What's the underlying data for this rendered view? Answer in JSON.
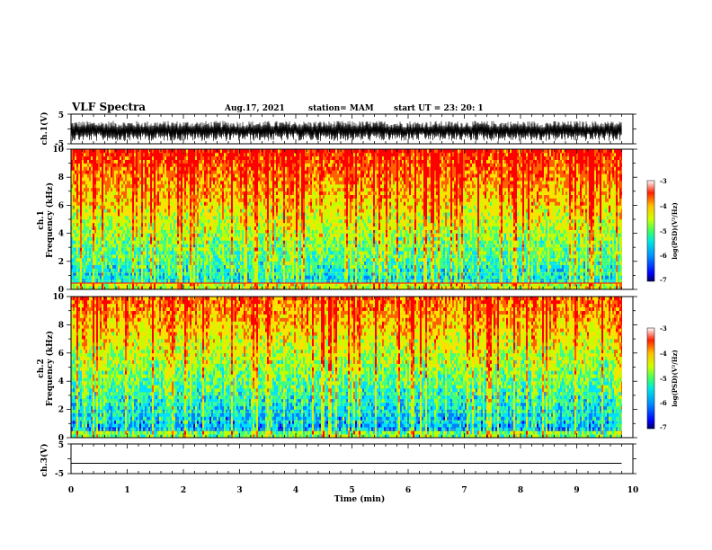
{
  "header": {
    "title": "VLF Spectra",
    "date": "Aug.17, 2021",
    "station": "station= MAM",
    "start": "start  UT  =   23: 20: 1"
  },
  "chart_data": [
    {
      "type": "line",
      "panel": "ch1-waveform",
      "ylabel": "ch.1(V)",
      "yticks": [
        "5",
        "-5"
      ],
      "ylim": [
        -5,
        5
      ],
      "description_values": "dense noise waveform approx between -4 and 2.5 V over 0-9.8 min"
    },
    {
      "type": "heatmap",
      "panel": "ch1-spectrogram",
      "ylabel": "ch.1\nFrequency (kHz)",
      "ylabel_line1": "ch.1",
      "ylabel_line2": "Frequency (kHz)",
      "yticks": [
        "0",
        "2",
        "4",
        "6",
        "8",
        "10"
      ],
      "ylim": [
        0,
        10
      ],
      "xlim": [
        0,
        9.8
      ],
      "colorbar": {
        "label": "log(PSD)(V²/Hz)",
        "ticks": [
          "-3",
          "-4",
          "-5",
          "-6",
          "-7"
        ],
        "range": [
          -7,
          -3
        ]
      }
    },
    {
      "type": "heatmap",
      "panel": "ch2-spectrogram",
      "ylabel": "ch.2\nFrequency (kHz)",
      "ylabel_line1": "ch.2",
      "ylabel_line2": "Frequency (kHz)",
      "yticks": [
        "0",
        "2",
        "4",
        "6",
        "8",
        "10"
      ],
      "ylim": [
        0,
        10
      ],
      "xlim": [
        0,
        9.8
      ],
      "colorbar": {
        "label": "log(PSD)(V²/Hz)",
        "ticks": [
          "-3",
          "-4",
          "-5",
          "-6",
          "-7"
        ],
        "range": [
          -7,
          -3
        ]
      }
    },
    {
      "type": "line",
      "panel": "ch3-waveform",
      "ylabel": "ch.3(V)",
      "yticks": [
        "5",
        "-5"
      ],
      "ylim": [
        -5,
        5
      ],
      "values_x": [
        0,
        9.8
      ],
      "values_y": [
        -1.5,
        -1.5
      ]
    }
  ],
  "xaxis": {
    "label": "Time (min)",
    "ticks": [
      "0",
      "1",
      "2",
      "3",
      "4",
      "5",
      "6",
      "7",
      "8",
      "9",
      "10"
    ],
    "range": [
      0,
      10
    ]
  },
  "colors": {
    "axis": "#000000",
    "colormap": [
      "#0000ff",
      "#0080ff",
      "#00e0ff",
      "#40ff80",
      "#c0ff00",
      "#ffe000",
      "#ff6000",
      "#ff0000"
    ]
  }
}
